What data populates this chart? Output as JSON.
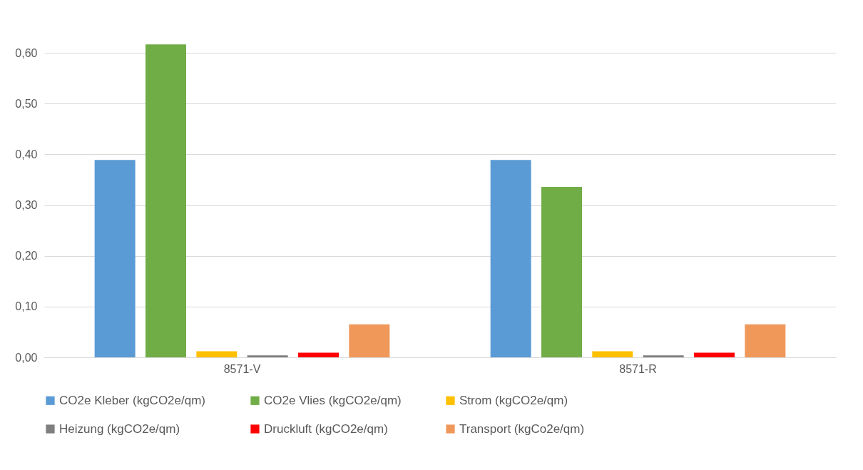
{
  "chart_data": {
    "type": "bar",
    "categories": [
      "8571-V",
      "8571-R"
    ],
    "series": [
      {
        "name": "CO2e Kleber (kgCO2e/qm)",
        "color": "#5b9bd5",
        "values": [
          0.389,
          0.389
        ]
      },
      {
        "name": "CO2e Vlies (kgCO2e/qm)",
        "color": "#70ad47",
        "values": [
          0.617,
          0.336
        ]
      },
      {
        "name": "Strom (kgCO2e/qm)",
        "color": "#ffc000",
        "values": [
          0.012,
          0.012
        ]
      },
      {
        "name": "Heizung (kgCO2e/qm)",
        "color": "#7f7f7f",
        "values": [
          0.004,
          0.004
        ]
      },
      {
        "name": "Druckluft (kgCO2e/qm)",
        "color": "#ff0000",
        "values": [
          0.009,
          0.009
        ]
      },
      {
        "name": "Transport (kgCo2e/qm)",
        "color": "#f0985a",
        "values": [
          0.065,
          0.065
        ]
      }
    ],
    "ylim": [
      0,
      0.62
    ],
    "yticks": [
      {
        "value": 0,
        "label": "0,00"
      },
      {
        "value": 0.1,
        "label": "0,10"
      },
      {
        "value": 0.2,
        "label": "0,20"
      },
      {
        "value": 0.3,
        "label": "0,30"
      },
      {
        "value": 0.4,
        "label": "0,40"
      },
      {
        "value": 0.5,
        "label": "0,50"
      },
      {
        "value": 0.6,
        "label": "0,60"
      }
    ],
    "grid": "y",
    "legend": "bottom"
  }
}
